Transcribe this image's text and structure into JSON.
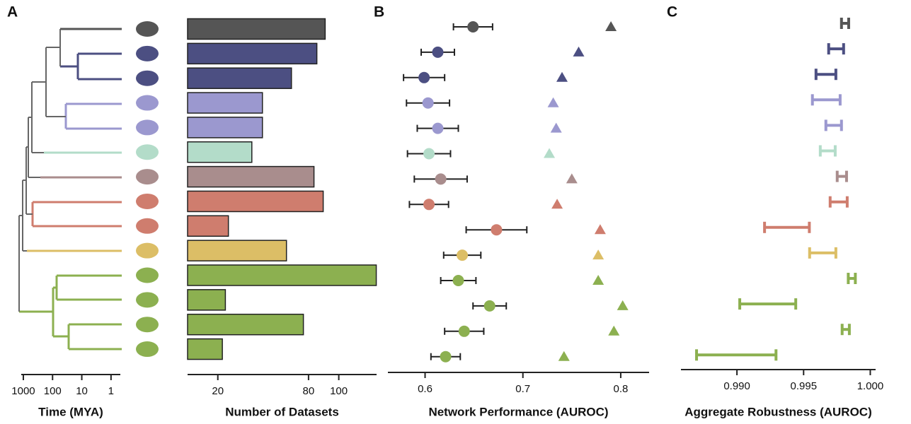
{
  "chart_data": [
    {
      "type": "tree",
      "panel": "A",
      "xlabel": "Time (MYA)",
      "log_scale": true,
      "xlim": [
        1180,
        0.48
      ],
      "xticks": [
        1000,
        100,
        10,
        1
      ]
    },
    {
      "type": "hbar",
      "xlabel": "Number of Datasets",
      "values": [
        91,
        85.5,
        68.7,
        49.5,
        49.5,
        42.5,
        83.6,
        89.7,
        27,
        65.4,
        124.8,
        25,
        76.6,
        23
      ],
      "colors": [
        "#555555",
        "#4c4f82",
        "#4c4f82",
        "#9b98cf",
        "#9b98cf",
        "#b3dcc9",
        "#a98d8d",
        "#cf7d6e",
        "#cf7d6e",
        "#dcbe66",
        "#8cb050",
        "#8cb050",
        "#8cb050",
        "#8cb050"
      ],
      "xlim": [
        0,
        125
      ],
      "xticks": [
        20,
        80,
        100
      ]
    },
    {
      "type": "dot_range",
      "panel": "B",
      "xlabel": "Network Performance (AUROC)",
      "series": [
        {
          "marker": "circle",
          "values": [
            0.649,
            0.613,
            0.599,
            0.603,
            0.613,
            0.604,
            0.616,
            0.604,
            0.673,
            0.638,
            0.634,
            0.666,
            0.64,
            0.621
          ],
          "errors": [
            0.02,
            0.017,
            0.021,
            0.022,
            0.021,
            0.022,
            0.027,
            0.02,
            0.031,
            0.019,
            0.018,
            0.017,
            0.02,
            0.015
          ]
        },
        {
          "marker": "triangle",
          "values": [
            0.79,
            0.757,
            0.74,
            0.731,
            0.734,
            0.727,
            0.75,
            0.735,
            0.779,
            0.777,
            0.777,
            0.802,
            0.793,
            0.742
          ]
        }
      ],
      "colors": [
        "#555555",
        "#4c4f82",
        "#4c4f82",
        "#9b98cf",
        "#9b98cf",
        "#b3dcc9",
        "#a98d8d",
        "#cf7d6e",
        "#cf7d6e",
        "#dcbe66",
        "#8cb050",
        "#8cb050",
        "#8cb050",
        "#8cb050"
      ],
      "xlim": [
        0.562,
        0.829
      ],
      "xticks": [
        0.6,
        0.7,
        0.8
      ]
    },
    {
      "type": "range",
      "panel": "C",
      "xlabel": "Aggregate Robustness (AUROC)",
      "low": [
        0.99784,
        0.99688,
        0.99593,
        0.99566,
        0.99667,
        0.99625,
        0.99752,
        0.99699,
        0.99207,
        0.99545,
        0.99835,
        0.99021,
        0.99789,
        0.98697
      ],
      "high": [
        0.99838,
        0.998,
        0.99742,
        0.99774,
        0.99784,
        0.99737,
        0.99822,
        0.99827,
        0.99543,
        0.99742,
        0.99888,
        0.99441,
        0.99843,
        0.99293
      ],
      "colors": [
        "#555555",
        "#4c4f82",
        "#4c4f82",
        "#9b98cf",
        "#9b98cf",
        "#b3dcc9",
        "#a98d8d",
        "#cf7d6e",
        "#cf7d6e",
        "#dcbe66",
        "#8cb050",
        "#8cb050",
        "#8cb050",
        "#8cb050"
      ],
      "xlim": [
        0.9858,
        1.0004
      ],
      "xticks": [
        {
          "value": 0.99,
          "label": "0.990"
        },
        {
          "value": 0.995,
          "label": "0.995"
        },
        {
          "value": 1,
          "label": "1.000"
        }
      ]
    }
  ]
}
